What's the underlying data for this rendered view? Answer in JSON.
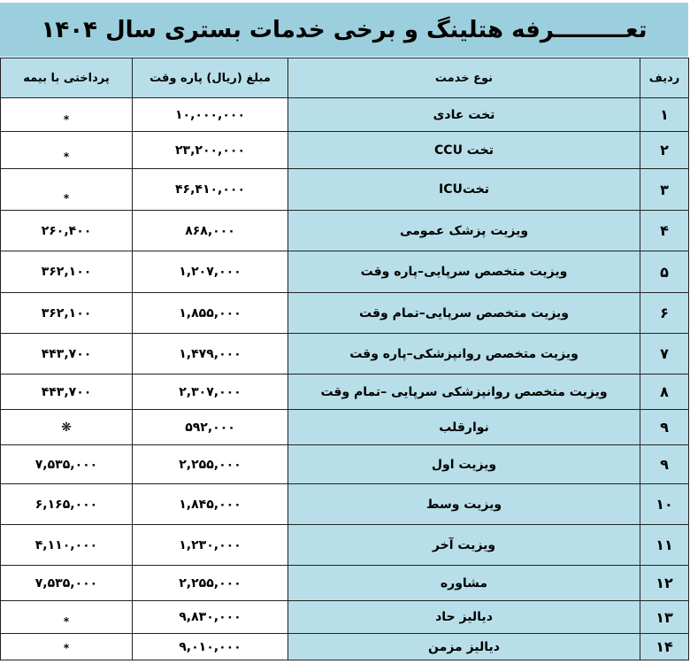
{
  "title": "تعـــــــــرفه هتلینگ و برخی خدمات بستری سال ۱۴۰۴",
  "columns": [
    "ردیف",
    "نوع خدمت",
    "مبلغ (ریال) پاره وقت",
    "پرداختی با بیمه"
  ],
  "colors": {
    "title_bg": "#9ccfdd",
    "header_bg": "#b8dfe9",
    "cell_bg": "#ffffff"
  },
  "rows": [
    {
      "idx": "۱",
      "service": "تخت عادی",
      "amount": "۱۰,۰۰۰,۰۰۰",
      "insurance": "*"
    },
    {
      "idx": "۲",
      "service": "تخت CCU",
      "amount": "۲۳,۲۰۰,۰۰۰",
      "insurance": "*"
    },
    {
      "idx": "۳",
      "service": "تختICU",
      "amount": "۴۶,۴۱۰,۰۰۰",
      "insurance": "*"
    },
    {
      "idx": "۴",
      "service": "ویزیت پزشک عمومی",
      "amount": "۸۶۸,۰۰۰",
      "insurance": "۲۶۰,۴۰۰"
    },
    {
      "idx": "۵",
      "service": "ویزیت متخصص سرپایی–پاره وقت",
      "amount": "۱,۲۰۷,۰۰۰",
      "insurance": "۳۶۲,۱۰۰"
    },
    {
      "idx": "۶",
      "service": "ویزیت متخصص سرپایی–تمام وقت",
      "amount": "۱,۸۵۵,۰۰۰",
      "insurance": "۳۶۲,۱۰۰"
    },
    {
      "idx": "۷",
      "service": "ویزیت متخصص روانپزشکی–پاره وقت",
      "amount": "۱,۴۷۹,۰۰۰",
      "insurance": "۴۴۳,۷۰۰"
    },
    {
      "idx": "۸",
      "service": "ویزیت متخصص روانپزشکی سرپایی –تمام وقت",
      "amount": "۲,۳۰۷,۰۰۰",
      "insurance": "۴۴۳,۷۰۰"
    },
    {
      "idx": "۹",
      "service": "نوارقلب",
      "amount": "۵۹۲,۰۰۰",
      "insurance": "❋"
    },
    {
      "idx": "۹",
      "service": "ویزیت اول",
      "amount": "۲,۲۵۵,۰۰۰",
      "insurance": "۷,۵۳۵,۰۰۰"
    },
    {
      "idx": "۱۰",
      "service": "ویزیت وسط",
      "amount": "۱,۸۴۵,۰۰۰",
      "insurance": "۶,۱۶۵,۰۰۰"
    },
    {
      "idx": "۱۱",
      "service": "ویزیت آخر",
      "amount": "۱,۲۳۰,۰۰۰",
      "insurance": "۴,۱۱۰,۰۰۰"
    },
    {
      "idx": "۱۲",
      "service": "مشاوره",
      "amount": "۲,۲۵۵,۰۰۰",
      "insurance": "۷,۵۳۵,۰۰۰"
    },
    {
      "idx": "۱۳",
      "service": "دیالیز حاد",
      "amount": "۹,۸۳۰,۰۰۰",
      "insurance": "*"
    },
    {
      "idx": "۱۴",
      "service": "دیالیز مزمن",
      "amount": "۹,۰۱۰,۰۰۰",
      "insurance": "*"
    }
  ]
}
